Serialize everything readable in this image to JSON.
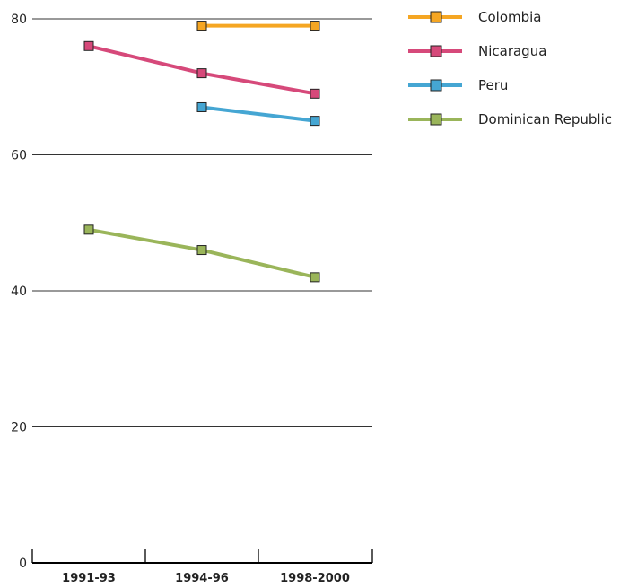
{
  "chart_data": {
    "type": "line",
    "categories": [
      "1991-93",
      "1994-96",
      "1998-2000"
    ],
    "ylim": [
      0,
      80
    ],
    "yticks": [
      0,
      20,
      40,
      60,
      80
    ],
    "grid": true,
    "legend_position": "top-right",
    "series": [
      {
        "name": "Colombia",
        "color": "#f5a623",
        "values": [
          null,
          79,
          79
        ]
      },
      {
        "name": "Nicaragua",
        "color": "#d6497a",
        "values": [
          76,
          72,
          69
        ]
      },
      {
        "name": "Peru",
        "color": "#45a6d3",
        "values": [
          null,
          67,
          65
        ]
      },
      {
        "name": "Dominican Republic",
        "color": "#9ab55a",
        "values": [
          49,
          46,
          42
        ]
      }
    ]
  }
}
